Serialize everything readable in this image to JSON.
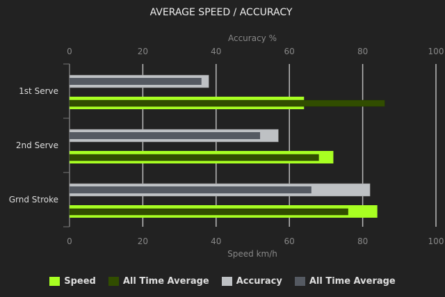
{
  "chart_data": {
    "type": "bar",
    "orientation": "horizontal",
    "title": "AVERAGE SPEED / ACCURACY",
    "top_axis_label": "Accuracy %",
    "bottom_axis_label": "Speed km/h",
    "xlim": [
      0,
      100
    ],
    "ticks": [
      0,
      20,
      40,
      60,
      80,
      100
    ],
    "grid": true,
    "legend_position": "bottom",
    "categories": [
      "1st Serve",
      "2nd Serve",
      "Grnd Stroke"
    ],
    "series": [
      {
        "name": "Speed",
        "color": "#a8ff22",
        "values": [
          64,
          72,
          84
        ]
      },
      {
        "name": "All Time Average",
        "color": "#314d00",
        "values": [
          86,
          68,
          76
        ]
      },
      {
        "name": "Accuracy",
        "color": "#bec1c4",
        "values": [
          38,
          57,
          82
        ]
      },
      {
        "name": "All Time Average",
        "color": "#555a62",
        "values": [
          36,
          52,
          66
        ]
      }
    ]
  }
}
